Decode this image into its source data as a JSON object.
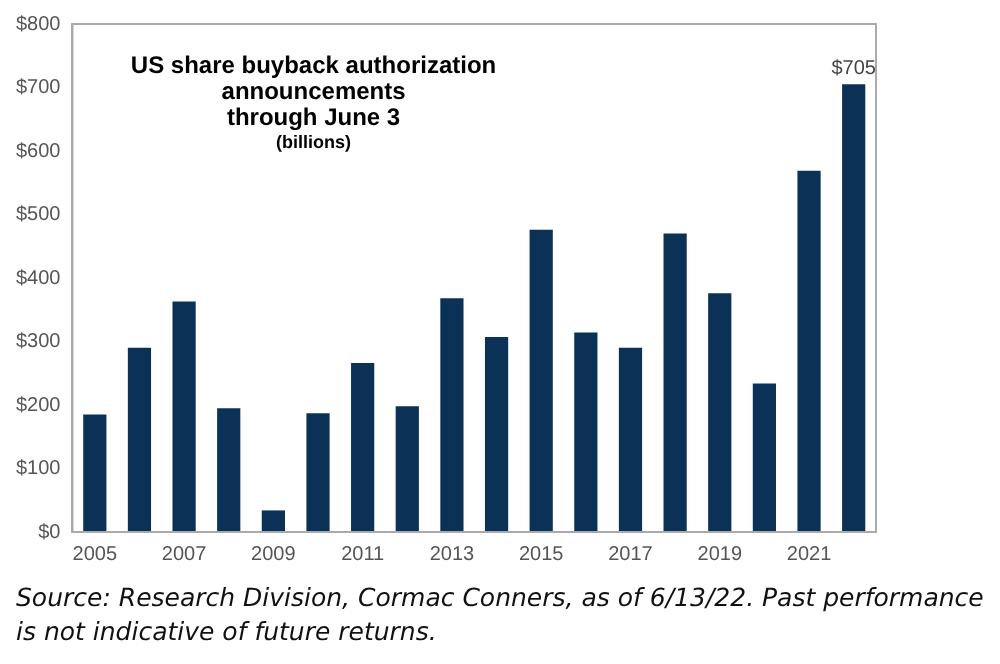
{
  "chart_data": {
    "type": "bar",
    "title": "US share buyback authorization\nannouncements\nthrough June 3",
    "subtitle": "(billions)",
    "categories": [
      "2005",
      null,
      "2007",
      null,
      "2009",
      null,
      "2011",
      null,
      "2013",
      null,
      "2015",
      null,
      "2017",
      null,
      "2019",
      null,
      "2021",
      null
    ],
    "values": [
      185,
      290,
      363,
      195,
      34,
      187,
      266,
      198,
      368,
      307,
      476,
      314,
      290,
      470,
      376,
      234,
      569,
      705
    ],
    "value_labels": [
      null,
      null,
      null,
      null,
      null,
      null,
      null,
      null,
      null,
      null,
      null,
      null,
      null,
      null,
      null,
      null,
      null,
      "$705"
    ],
    "color": "#0c3157",
    "ylim": [
      0,
      800
    ],
    "yticks": [
      {
        "value": 0,
        "label": "$0"
      },
      {
        "value": 100,
        "label": "$100"
      },
      {
        "value": 200,
        "label": "$200"
      },
      {
        "value": 300,
        "label": "$300"
      },
      {
        "value": 400,
        "label": "$400"
      },
      {
        "value": 500,
        "label": "$500"
      },
      {
        "value": 600,
        "label": "$600"
      },
      {
        "value": 700,
        "label": "$700"
      },
      {
        "value": 800,
        "label": "$800"
      }
    ],
    "grid": false,
    "legend": false,
    "annotations": [
      "Source: Research Division, Cormac Conners, as of 6/13/22. Past performance is not indicative of future returns."
    ]
  }
}
